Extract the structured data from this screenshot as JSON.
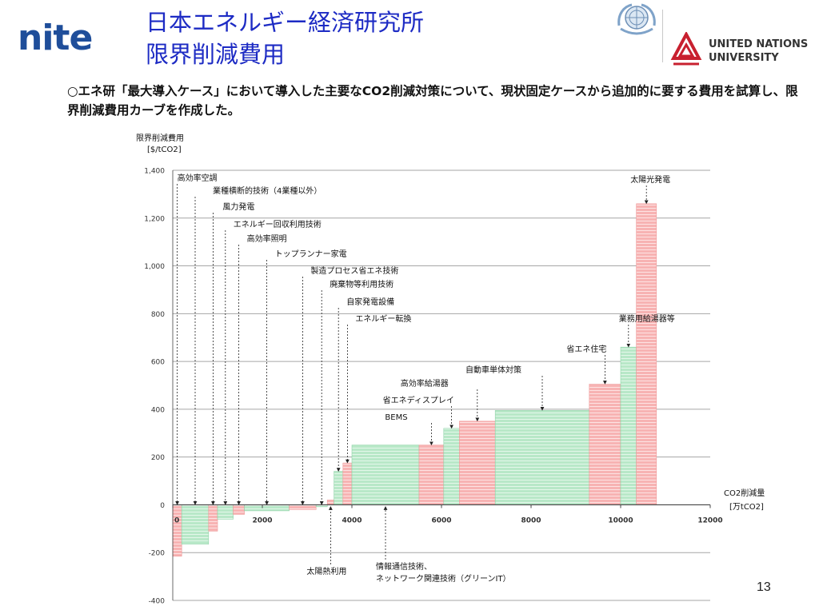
{
  "logo": {
    "nite": "nite"
  },
  "title": {
    "line1": "日本エネルギー経済研究所",
    "line2": "限界削減費用"
  },
  "unu": {
    "line1": "UNITED NATIONS",
    "line2": "UNIVERSITY"
  },
  "description": "○エネ研「最大導入ケース」において導入した主要なCO2削減対策について、現状固定ケースから追加的に要する費用を試算し、限界削減費用カーブを作成した。",
  "page_number": "13",
  "colors": {
    "pink": "#f7b3b3",
    "pink_line": "#ef9a9a",
    "green": "#b8e8c8",
    "green_line": "#8fd3a8",
    "grid": "#a6a6a6",
    "title": "#1d2bc4",
    "nite": "#1f4e9a"
  },
  "chart_data": {
    "type": "bar",
    "subtype": "marginal-abatement-cost-curve",
    "ylabel": "限界削減費用",
    "yunit": "[$/tCO2]",
    "xlabel": "CO2削減量",
    "xunit": "[万tCO2]",
    "xlim": [
      0,
      12000
    ],
    "ylim": [
      -400,
      1400
    ],
    "xticks": [
      0,
      2000,
      4000,
      6000,
      8000,
      10000,
      12000
    ],
    "yticks": [
      -400,
      -200,
      0,
      200,
      400,
      600,
      800,
      1000,
      1200,
      1400
    ],
    "grid": "horizontal",
    "bars": [
      {
        "x0": 0,
        "x1": 200,
        "y": -215,
        "color": "pink",
        "label": "高効率空調",
        "label_pos": "top"
      },
      {
        "x0": 200,
        "x1": 800,
        "y": -165,
        "color": "green",
        "label": "業種横断的技術（4業種以外）",
        "label_pos": "top"
      },
      {
        "x0": 800,
        "x1": 1000,
        "y": -110,
        "color": "pink",
        "label": "風力発電",
        "label_pos": "top"
      },
      {
        "x0": 1000,
        "x1": 1350,
        "y": -60,
        "color": "green",
        "label": "エネルギー回収利用技術",
        "label_pos": "top"
      },
      {
        "x0": 1350,
        "x1": 1600,
        "y": -40,
        "color": "pink",
        "label": "高効率照明",
        "label_pos": "top"
      },
      {
        "x0": 1600,
        "x1": 2600,
        "y": -25,
        "color": "green",
        "label": "トップランナー家電",
        "label_pos": "top"
      },
      {
        "x0": 2600,
        "x1": 3200,
        "y": -20,
        "color": "pink",
        "label": "製造プロセス省エネ技術",
        "label_pos": "top"
      },
      {
        "x0": 3200,
        "x1": 3450,
        "y": -8,
        "color": "green",
        "label": "廃棄物等利用技術",
        "label_pos": "top"
      },
      {
        "x0": 3450,
        "x1": 3600,
        "y": 20,
        "color": "pink",
        "label": "太陽熱利用",
        "label_pos": "bottom"
      },
      {
        "x0": 3600,
        "x1": 3800,
        "y": 140,
        "color": "green",
        "label": "自家発電設備",
        "label_pos": "top"
      },
      {
        "x0": 3800,
        "x1": 4000,
        "y": 175,
        "color": "pink",
        "label": "エネルギー転換",
        "label_pos": "top"
      },
      {
        "x0": 4000,
        "x1": 5500,
        "y": 250,
        "color": "green",
        "label": "情報通信技術、ネットワーク関連技術（グリーンIT）",
        "label_pos": "bottom"
      },
      {
        "x0": 5500,
        "x1": 6050,
        "y": 250,
        "color": "pink",
        "label": "BEMS",
        "label_pos": "top"
      },
      {
        "x0": 6050,
        "x1": 6400,
        "y": 320,
        "color": "green",
        "label": "省エネディスプレイ",
        "label_pos": "top"
      },
      {
        "x0": 6400,
        "x1": 7200,
        "y": 350,
        "color": "pink",
        "label": "高効率給湯器",
        "label_pos": "top"
      },
      {
        "x0": 7200,
        "x1": 9300,
        "y": 395,
        "color": "green",
        "label": "自動車単体対策",
        "label_pos": "top"
      },
      {
        "x0": 9300,
        "x1": 10000,
        "y": 505,
        "color": "pink",
        "label": "省エネ住宅",
        "label_pos": "top"
      },
      {
        "x0": 10000,
        "x1": 10350,
        "y": 660,
        "color": "green",
        "label": "業務用給湯器等",
        "label_pos": "top"
      },
      {
        "x0": 10350,
        "x1": 10800,
        "y": 1260,
        "color": "pink",
        "label": "太陽光発電",
        "label_pos": "top"
      }
    ]
  }
}
